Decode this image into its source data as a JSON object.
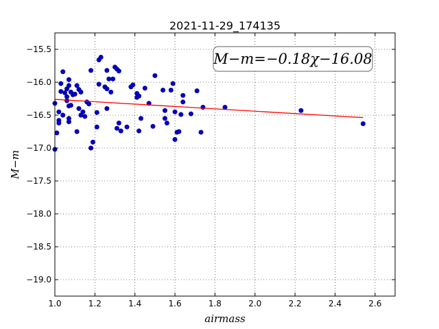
{
  "chart_data": {
    "type": "scatter",
    "title": "2021-11-29_174135",
    "xlabel": "airmass",
    "ylabel": "M−m",
    "xlim": [
      1.0,
      2.7
    ],
    "ylim": [
      -19.25,
      -15.25
    ],
    "xticks": [
      1.0,
      1.2,
      1.4,
      1.6,
      1.8,
      2.0,
      2.2,
      2.4,
      2.6
    ],
    "xtick_labels": [
      "1.0",
      "1.2",
      "1.4",
      "1.6",
      "1.8",
      "2.0",
      "2.2",
      "2.4",
      "2.6"
    ],
    "yticks": [
      -15.5,
      -16.0,
      -16.5,
      -17.0,
      -17.5,
      -18.0,
      -18.5,
      -19.0
    ],
    "ytick_labels": [
      "−15.5",
      "−16.0",
      "−16.5",
      "−17.0",
      "−17.5",
      "−18.0",
      "−18.5",
      "−19.0"
    ],
    "grid": true,
    "annotation": "M−m=−0.18χ−16.08",
    "annotation_placement": "top-right",
    "fit": {
      "slope": -0.18,
      "intercept": -16.08,
      "x_range": [
        1.0,
        2.54
      ],
      "color": "#ff0000"
    },
    "point_color": "#0000cc",
    "points": [
      [
        1.0,
        -16.32
      ],
      [
        1.0,
        -17.02
      ],
      [
        1.01,
        -16.77
      ],
      [
        1.02,
        -16.45
      ],
      [
        1.02,
        -16.58
      ],
      [
        1.02,
        -16.62
      ],
      [
        1.03,
        -16.14
      ],
      [
        1.03,
        -16.02
      ],
      [
        1.04,
        -16.5
      ],
      [
        1.04,
        -15.84
      ],
      [
        1.05,
        -16.16
      ],
      [
        1.06,
        -16.22
      ],
      [
        1.06,
        -16.1
      ],
      [
        1.07,
        -16.05
      ],
      [
        1.07,
        -15.96
      ],
      [
        1.06,
        -16.28
      ],
      [
        1.07,
        -16.36
      ],
      [
        1.07,
        -16.55
      ],
      [
        1.07,
        -16.6
      ],
      [
        1.08,
        -16.35
      ],
      [
        1.08,
        -16.15
      ],
      [
        1.09,
        -16.19
      ],
      [
        1.1,
        -16.18
      ],
      [
        1.11,
        -16.05
      ],
      [
        1.11,
        -16.75
      ],
      [
        1.12,
        -16.4
      ],
      [
        1.12,
        -16.11
      ],
      [
        1.13,
        -16.15
      ],
      [
        1.13,
        -16.5
      ],
      [
        1.14,
        -16.45
      ],
      [
        1.15,
        -16.52
      ],
      [
        1.16,
        -16.3
      ],
      [
        1.17,
        -16.33
      ],
      [
        1.18,
        -17.0
      ],
      [
        1.18,
        -15.82
      ],
      [
        1.19,
        -16.91
      ],
      [
        1.21,
        -16.68
      ],
      [
        1.21,
        -16.46
      ],
      [
        1.22,
        -16.03
      ],
      [
        1.22,
        -15.66
      ],
      [
        1.23,
        -15.62
      ],
      [
        1.25,
        -16.07
      ],
      [
        1.26,
        -16.1
      ],
      [
        1.26,
        -15.82
      ],
      [
        1.27,
        -15.95
      ],
      [
        1.26,
        -16.4
      ],
      [
        1.28,
        -16.15
      ],
      [
        1.29,
        -15.95
      ],
      [
        1.3,
        -15.77
      ],
      [
        1.31,
        -15.8
      ],
      [
        1.32,
        -16.62
      ],
      [
        1.31,
        -16.7
      ],
      [
        1.33,
        -16.74
      ],
      [
        1.32,
        -15.83
      ],
      [
        1.36,
        -16.68
      ],
      [
        1.38,
        -16.07
      ],
      [
        1.39,
        -16.04
      ],
      [
        1.41,
        -16.17
      ],
      [
        1.41,
        -16.23
      ],
      [
        1.42,
        -16.21
      ],
      [
        1.42,
        -16.74
      ],
      [
        1.43,
        -16.55
      ],
      [
        1.45,
        -16.09
      ],
      [
        1.47,
        -16.32
      ],
      [
        1.49,
        -16.67
      ],
      [
        1.5,
        -15.9
      ],
      [
        1.54,
        -16.12
      ],
      [
        1.55,
        -16.43
      ],
      [
        1.55,
        -16.55
      ],
      [
        1.56,
        -16.62
      ],
      [
        1.58,
        -16.12
      ],
      [
        1.59,
        -16.02
      ],
      [
        1.6,
        -16.45
      ],
      [
        1.6,
        -16.87
      ],
      [
        1.61,
        -16.76
      ],
      [
        1.62,
        -16.75
      ],
      [
        1.63,
        -16.49
      ],
      [
        1.64,
        -16.3
      ],
      [
        1.64,
        -16.2
      ],
      [
        1.68,
        -16.48
      ],
      [
        1.71,
        -16.13
      ],
      [
        1.73,
        -16.76
      ],
      [
        1.74,
        -16.38
      ],
      [
        1.85,
        -16.38
      ],
      [
        2.23,
        -16.43
      ],
      [
        2.54,
        -16.63
      ]
    ]
  }
}
